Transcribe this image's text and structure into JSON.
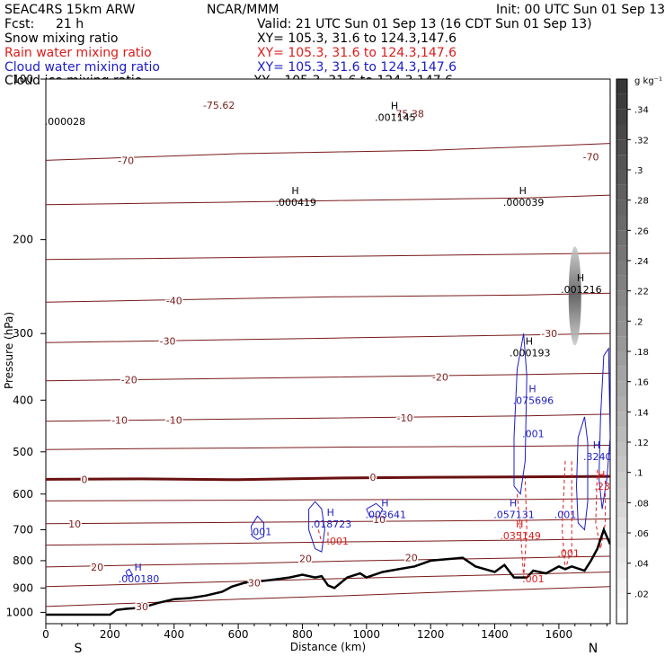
{
  "header": {
    "model": "SEAC4RS 15km ARW",
    "org": "NCAR/MMM",
    "init": "Init: 00 UTC Sun 01 Sep 13",
    "fcst_label": "Fcst:",
    "fcst_value": "21 h",
    "valid": "Valid: 21 UTC Sun 01 Sep 13 (16 CDT Sun 01 Sep 13)",
    "fields": [
      {
        "name": "Snow mixing ratio",
        "color": "#000000",
        "xy": "XY= 105.3, 31.6 to 124.3,147.6"
      },
      {
        "name": "Rain water mixing ratio",
        "color": "#dd1c1c",
        "xy": "XY= 105.3, 31.6 to 124.3,147.6"
      },
      {
        "name": "Cloud water mixing ratio",
        "color": "#1c1cc8",
        "xy": "XY= 105.3, 31.6 to 124.3,147.6"
      },
      {
        "name": "Cloud ice mixing ratio",
        "color": "#000000",
        "xy": "XY= 105.3, 31.6 to 124.3,147.6"
      }
    ]
  },
  "colors": {
    "temperature": "#7a1a1a",
    "zero_isotherm": "#6a1010",
    "rain": "#dd1c1c",
    "cloud_water": "#1c1cc8",
    "terrain": "#000000"
  },
  "chart_data": {
    "type": "cross-section",
    "xlabel": "Distance (km)",
    "ylabel": "Pressure (hPa)",
    "xlim": [
      0,
      1760
    ],
    "ylim": [
      1050,
      100
    ],
    "y_scale": "log-pressure",
    "x_ticks": [
      "0",
      "200",
      "400",
      "600",
      "800",
      "1000",
      "1200",
      "1400",
      "1600"
    ],
    "y_ticks": [
      "100",
      "200",
      "300",
      "400",
      "500",
      "600",
      "700",
      "800",
      "900",
      "1000"
    ],
    "end_labels": {
      "left": "S",
      "right": "N"
    },
    "terrain": {
      "x": [
        0,
        100,
        200,
        220,
        250,
        300,
        350,
        400,
        450,
        500,
        550,
        580,
        620,
        660,
        700,
        760,
        800,
        840,
        860,
        880,
        900,
        940,
        980,
        1000,
        1050,
        1100,
        1150,
        1200,
        1250,
        1300,
        1340,
        1400,
        1430,
        1460,
        1500,
        1520,
        1560,
        1600,
        1620,
        1640,
        1680,
        1700,
        1720,
        1740,
        1760
      ],
      "p": [
        1010,
        1010,
        1010,
        990,
        985,
        980,
        960,
        945,
        940,
        930,
        915,
        895,
        880,
        875,
        870,
        860,
        850,
        860,
        855,
        890,
        900,
        860,
        845,
        860,
        840,
        830,
        820,
        800,
        795,
        790,
        820,
        840,
        815,
        860,
        860,
        835,
        845,
        820,
        830,
        820,
        835,
        800,
        760,
        700,
        745
      ]
    },
    "isotherms": [
      {
        "label": "-70",
        "p": [
          142,
          140,
          138,
          137,
          136,
          134,
          132
        ]
      },
      {
        "label": "-60",
        "p": [
          172,
          171,
          170,
          169,
          168,
          167,
          165
        ]
      },
      {
        "label": "-50",
        "p": [
          218,
          217,
          216,
          215,
          214,
          213,
          212
        ]
      },
      {
        "label": "-40",
        "p": [
          262,
          260,
          258,
          256,
          255,
          254,
          252
        ]
      },
      {
        "label": "-30",
        "p": [
          312,
          310,
          308,
          306,
          304,
          302,
          300
        ]
      },
      {
        "label": "-20",
        "p": [
          368,
          366,
          364,
          362,
          360,
          358,
          356
        ]
      },
      {
        "label": "-10",
        "p": [
          438,
          436,
          434,
          432,
          430,
          428,
          425
        ]
      },
      {
        "label": "-5",
        "p": [
          495,
          493,
          492,
          490,
          489,
          488,
          486
        ]
      },
      {
        "label": "0",
        "p": [
          563,
          562,
          564,
          560,
          558,
          557,
          556
        ]
      },
      {
        "label": "5",
        "p": [
          618,
          617,
          616,
          615,
          614,
          614,
          612
        ]
      },
      {
        "label": "10",
        "p": [
          682,
          680,
          678,
          676,
          674,
          672,
          668
        ]
      },
      {
        "label": "15",
        "p": [
          748,
          745,
          742,
          738,
          735,
          732,
          728
        ]
      },
      {
        "label": "20",
        "p": [
          822,
          815,
          810,
          802,
          796,
          790,
          785
        ]
      },
      {
        "label": "25",
        "p": [
          895,
          885,
          875,
          865,
          856,
          848,
          840
        ]
      },
      {
        "label": "30",
        "p": [
          975,
          960,
          945,
          932,
          918,
          905,
          895
        ]
      }
    ],
    "isotherm_x": [
      0,
      300,
      600,
      900,
      1200,
      1500,
      1760
    ],
    "temperature_labels": [
      {
        "text": "-75.62",
        "x": 540,
        "p": 112
      },
      {
        "text": "-75.38",
        "x": 1130,
        "p": 116
      },
      {
        "text": "-70",
        "x": 250,
        "p": 142
      },
      {
        "text": "-70",
        "x": 1700,
        "p": 140
      },
      {
        "text": "-40",
        "x": 400,
        "p": 260
      },
      {
        "text": "-30",
        "x": 380,
        "p": 310
      },
      {
        "text": "-30",
        "x": 1570,
        "p": 300
      },
      {
        "text": "-20",
        "x": 260,
        "p": 366
      },
      {
        "text": "-20",
        "x": 1230,
        "p": 362
      },
      {
        "text": "-10",
        "x": 230,
        "p": 436
      },
      {
        "text": "-10",
        "x": 400,
        "p": 436
      },
      {
        "text": "-10",
        "x": 1120,
        "p": 432
      },
      {
        "text": "0",
        "x": 120,
        "p": 563
      },
      {
        "text": "0",
        "x": 1020,
        "p": 558
      },
      {
        "text": "10",
        "x": 90,
        "p": 682
      },
      {
        "text": "10",
        "x": 1040,
        "p": 670
      },
      {
        "text": "20",
        "x": 810,
        "p": 792
      },
      {
        "text": "20",
        "x": 1140,
        "p": 790
      },
      {
        "text": "20",
        "x": 160,
        "p": 822
      },
      {
        "text": "30",
        "x": 650,
        "p": 880
      },
      {
        "text": "30",
        "x": 300,
        "p": 975
      }
    ],
    "maxima": [
      {
        "text": ".000028",
        "x": 60,
        "p": 120,
        "color": "#000000",
        "h": false
      },
      {
        "text": ".001145",
        "x": 1090,
        "p": 118,
        "color": "#000000",
        "h": true
      },
      {
        "text": ".000419",
        "x": 780,
        "p": 170,
        "color": "#000000",
        "h": true
      },
      {
        "text": ".000039",
        "x": 1490,
        "p": 170,
        "color": "#000000",
        "h": true
      },
      {
        "text": ".001216",
        "x": 1670,
        "p": 248,
        "color": "#000000",
        "h": true
      },
      {
        "text": ".000193",
        "x": 1510,
        "p": 326,
        "color": "#000000",
        "h": true
      },
      {
        "text": ".075696",
        "x": 1520,
        "p": 400,
        "color": "#1c1cc8",
        "h": true
      },
      {
        "text": ".001",
        "x": 1520,
        "p": 462,
        "color": "#1c1cc8",
        "h": false
      },
      {
        "text": ".3240",
        "x": 1720,
        "p": 510,
        "color": "#1c1cc8",
        "h": true
      },
      {
        "text": ".057131",
        "x": 1460,
        "p": 655,
        "color": "#1c1cc8",
        "h": true
      },
      {
        "text": ".018723",
        "x": 890,
        "p": 682,
        "color": "#1c1cc8",
        "h": true
      },
      {
        "text": ".003641",
        "x": 1060,
        "p": 655,
        "color": "#1c1cc8",
        "h": true
      },
      {
        "text": ".001",
        "x": 670,
        "p": 705,
        "color": "#1c1cc8",
        "h": false
      },
      {
        "text": ".001",
        "x": 1620,
        "p": 655,
        "color": "#1c1cc8",
        "h": false
      },
      {
        "text": ".000180",
        "x": 290,
        "p": 865,
        "color": "#1c1cc8",
        "h": true
      },
      {
        "text": ".035149",
        "x": 1480,
        "p": 718,
        "color": "#dd1c1c",
        "h": true
      },
      {
        "text": ".001",
        "x": 910,
        "p": 735,
        "color": "#dd1c1c",
        "h": false
      },
      {
        "text": ".001",
        "x": 1630,
        "p": 775,
        "color": "#dd1c1c",
        "h": false
      },
      {
        "text": ".001",
        "x": 1520,
        "p": 865,
        "color": "#dd1c1c",
        "h": false
      },
      {
        "text": ".23",
        "x": 1735,
        "p": 580,
        "color": "#dd1c1c",
        "h": true
      }
    ],
    "colorbar": {
      "unit": "g kg⁻¹",
      "range": [
        0,
        0.36
      ],
      "ticks": [
        ".34",
        ".32",
        ".3",
        ".28",
        ".26",
        ".24",
        ".22",
        ".2",
        ".18",
        ".16",
        ".14",
        ".12",
        ".1",
        ".08",
        ".06",
        ".04",
        ".02"
      ],
      "tick_values": [
        0.34,
        0.32,
        0.3,
        0.28,
        0.26,
        0.24,
        0.22,
        0.2,
        0.18,
        0.16,
        0.14,
        0.12,
        0.1,
        0.08,
        0.06,
        0.04,
        0.02
      ]
    }
  }
}
